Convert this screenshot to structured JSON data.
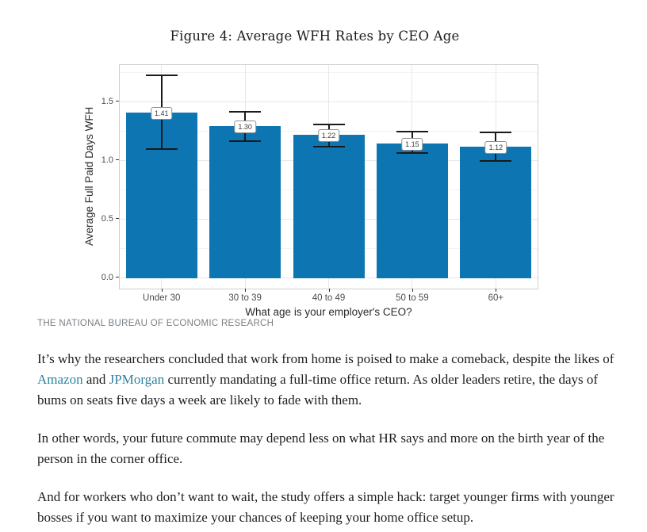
{
  "figure": {
    "caption": "THE NATIONAL BUREAU OF ECONOMIC RESEARCH"
  },
  "chart_data": {
    "type": "bar",
    "title": "Figure 4: Average WFH Rates by CEO Age",
    "xlabel": "What age is your employer's CEO?",
    "ylabel": "Average Full Paid Days WFH",
    "categories": [
      "Under 30",
      "30 to 39",
      "40 to 49",
      "50 to 59",
      "60+"
    ],
    "values": [
      1.41,
      1.3,
      1.22,
      1.15,
      1.12
    ],
    "value_labels": [
      "1.41",
      "1.30",
      "1.22",
      "1.15",
      "1.12"
    ],
    "error_low": [
      1.1,
      1.17,
      1.12,
      1.07,
      1.0
    ],
    "error_high": [
      1.73,
      1.42,
      1.31,
      1.25,
      1.24
    ],
    "yticks": [
      0.0,
      0.5,
      1.0,
      1.5
    ],
    "ytick_labels": [
      "0.0",
      "0.5",
      "1.0",
      "1.5"
    ],
    "yminor": [
      0.25,
      0.75,
      1.25,
      1.75
    ],
    "ylim": [
      -0.09,
      1.82
    ],
    "grid": true,
    "legend": false,
    "bar_color": "#0d76b2",
    "error_color": "#1a1a1a",
    "grid_major_color": "#e7e7e7",
    "grid_minor_color": "#f3f3f3"
  },
  "article": {
    "paragraphs": [
      {
        "segments": [
          {
            "text": "It’s why the researchers concluded that work from home is poised to make a comeback, despite the likes of "
          },
          {
            "text": "Amazon",
            "link": true,
            "name": "link-amazon"
          },
          {
            "text": " and "
          },
          {
            "text": "JPMorgan",
            "link": true,
            "name": "link-jpmorgan"
          },
          {
            "text": " currently mandating a full-time office return. As older leaders retire, the days of bums on seats five days a week are likely to fade with them."
          }
        ]
      },
      {
        "segments": [
          {
            "text": "In other words, your future commute may depend less on what HR says and more on the birth year of the person in the corner office."
          }
        ]
      },
      {
        "segments": [
          {
            "text": "And for workers who don’t want to wait, the study offers a simple hack: target younger firms with younger bosses if you want to maximize your chances of keeping your home office setup."
          }
        ]
      }
    ]
  }
}
